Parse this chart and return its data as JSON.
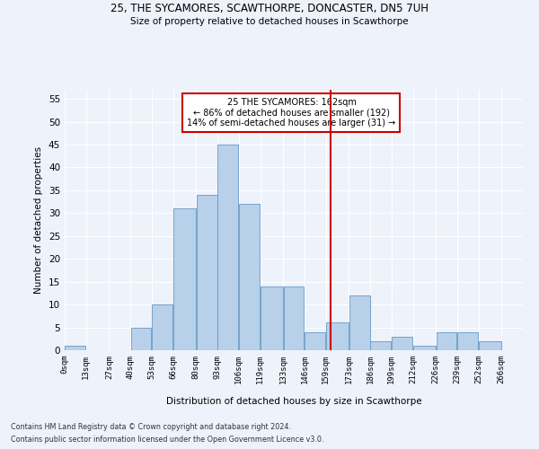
{
  "title_line1": "25, THE SYCAMORES, SCAWTHORPE, DONCASTER, DN5 7UH",
  "title_line2": "Size of property relative to detached houses in Scawthorpe",
  "xlabel": "Distribution of detached houses by size in Scawthorpe",
  "ylabel": "Number of detached properties",
  "bin_labels": [
    "0sqm",
    "13sqm",
    "27sqm",
    "40sqm",
    "53sqm",
    "66sqm",
    "80sqm",
    "93sqm",
    "106sqm",
    "119sqm",
    "133sqm",
    "146sqm",
    "159sqm",
    "173sqm",
    "186sqm",
    "199sqm",
    "212sqm",
    "226sqm",
    "239sqm",
    "252sqm",
    "266sqm"
  ],
  "bar_heights": [
    1,
    0,
    0,
    5,
    10,
    31,
    34,
    45,
    32,
    14,
    14,
    4,
    6,
    12,
    2,
    3,
    1,
    4,
    4,
    2,
    0
  ],
  "bar_color": "#b8d0ea",
  "bar_edge_color": "#6899c4",
  "property_line_x": 162,
  "property_line_color": "#cc0000",
  "annotation_text": "25 THE SYCAMORES: 162sqm\n← 86% of detached houses are smaller (192)\n14% of semi-detached houses are larger (31) →",
  "annotation_box_color": "#ffffff",
  "annotation_box_edge_color": "#cc0000",
  "footer_line1": "Contains HM Land Registry data © Crown copyright and database right 2024.",
  "footer_line2": "Contains public sector information licensed under the Open Government Licence v3.0.",
  "ylim": [
    0,
    57
  ],
  "yticks": [
    0,
    5,
    10,
    15,
    20,
    25,
    30,
    35,
    40,
    45,
    50,
    55
  ],
  "bin_edges": [
    0,
    13,
    27,
    40,
    53,
    66,
    80,
    93,
    106,
    119,
    133,
    146,
    159,
    173,
    186,
    199,
    212,
    226,
    239,
    252,
    266,
    279
  ],
  "background_color": "#eef2fb"
}
